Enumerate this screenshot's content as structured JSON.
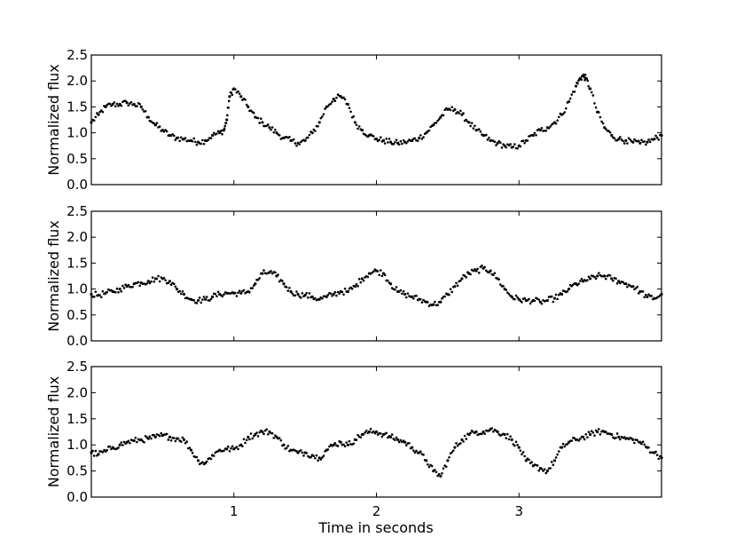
{
  "figure": {
    "xlabel": "Time in seconds"
  },
  "chart_data": [
    {
      "type": "scatter",
      "panel": "top",
      "ylabel": "Normalized flux",
      "xlim": [
        0,
        4
      ],
      "ylim": [
        0,
        2.5
      ],
      "yticks": [
        0,
        0.5,
        1,
        1.5,
        2,
        2.5
      ],
      "ytick_labels": [
        "0.0",
        "0.5",
        "1.0",
        "1.5",
        "2.0",
        "2.5"
      ],
      "xticks": [
        1,
        2,
        3
      ],
      "xtick_labels": [],
      "marker_color": "#000000",
      "series": [
        {
          "x": [
            0.0,
            0.05,
            0.1,
            0.15,
            0.2,
            0.25,
            0.3,
            0.35,
            0.4,
            0.45,
            0.5,
            0.55,
            0.6,
            0.65,
            0.7,
            0.75,
            0.8,
            0.85,
            0.9,
            0.93,
            0.95,
            0.97,
            1.0,
            1.05,
            1.1,
            1.15,
            1.2,
            1.25,
            1.3,
            1.35,
            1.4,
            1.45,
            1.5,
            1.55,
            1.6,
            1.65,
            1.7,
            1.75,
            1.8,
            1.85,
            1.9,
            1.95,
            2.0,
            2.05,
            2.1,
            2.15,
            2.2,
            2.25,
            2.3,
            2.35,
            2.4,
            2.45,
            2.5,
            2.55,
            2.6,
            2.65,
            2.7,
            2.75,
            2.8,
            2.85,
            2.9,
            2.95,
            3.0,
            3.05,
            3.1,
            3.15,
            3.2,
            3.25,
            3.3,
            3.35,
            3.4,
            3.43,
            3.45,
            3.47,
            3.5,
            3.55,
            3.6,
            3.65,
            3.7,
            3.75,
            3.8,
            3.85,
            3.9,
            3.95,
            4.0
          ],
          "y": [
            1.2,
            1.35,
            1.5,
            1.55,
            1.55,
            1.58,
            1.55,
            1.5,
            1.3,
            1.15,
            1.05,
            0.95,
            0.9,
            0.88,
            0.85,
            0.82,
            0.85,
            0.95,
            1.0,
            1.05,
            1.25,
            1.7,
            1.85,
            1.7,
            1.5,
            1.3,
            1.2,
            1.1,
            1.0,
            0.9,
            0.85,
            0.8,
            0.85,
            1.0,
            1.2,
            1.5,
            1.65,
            1.7,
            1.55,
            1.2,
            1.05,
            0.95,
            0.88,
            0.85,
            0.82,
            0.8,
            0.82,
            0.85,
            0.9,
            1.0,
            1.15,
            1.3,
            1.45,
            1.45,
            1.35,
            1.2,
            1.05,
            0.95,
            0.85,
            0.8,
            0.75,
            0.72,
            0.75,
            0.85,
            0.95,
            1.05,
            1.1,
            1.2,
            1.35,
            1.6,
            1.9,
            2.05,
            2.1,
            2.05,
            1.85,
            1.4,
            1.1,
            0.95,
            0.88,
            0.85,
            0.82,
            0.8,
            0.82,
            0.88,
            0.95
          ]
        }
      ]
    },
    {
      "type": "scatter",
      "panel": "middle",
      "ylabel": "Normalized flux",
      "xlim": [
        0,
        4
      ],
      "ylim": [
        0,
        2.5
      ],
      "yticks": [
        0,
        0.5,
        1,
        1.5,
        2,
        2.5
      ],
      "ytick_labels": [
        "0.0",
        "0.5",
        "1.0",
        "1.5",
        "2.0",
        "2.5"
      ],
      "xticks": [
        1,
        2,
        3
      ],
      "xtick_labels": [],
      "marker_color": "#000000",
      "series": [
        {
          "x": [
            0.0,
            0.05,
            0.1,
            0.15,
            0.2,
            0.25,
            0.3,
            0.35,
            0.4,
            0.45,
            0.5,
            0.55,
            0.6,
            0.65,
            0.7,
            0.75,
            0.8,
            0.85,
            0.9,
            0.95,
            1.0,
            1.05,
            1.1,
            1.15,
            1.2,
            1.25,
            1.3,
            1.35,
            1.4,
            1.45,
            1.5,
            1.55,
            1.6,
            1.65,
            1.7,
            1.75,
            1.8,
            1.85,
            1.9,
            1.95,
            2.0,
            2.05,
            2.1,
            2.15,
            2.2,
            2.25,
            2.3,
            2.35,
            2.4,
            2.45,
            2.5,
            2.55,
            2.6,
            2.65,
            2.7,
            2.75,
            2.8,
            2.85,
            2.9,
            2.95,
            3.0,
            3.05,
            3.1,
            3.15,
            3.2,
            3.25,
            3.3,
            3.35,
            3.4,
            3.45,
            3.5,
            3.55,
            3.6,
            3.65,
            3.7,
            3.75,
            3.8,
            3.85,
            3.9,
            3.95,
            4.0
          ],
          "y": [
            0.9,
            0.88,
            0.92,
            0.95,
            1.0,
            1.05,
            1.1,
            1.12,
            1.15,
            1.2,
            1.2,
            1.15,
            1.0,
            0.9,
            0.8,
            0.78,
            0.8,
            0.85,
            0.9,
            0.92,
            0.92,
            0.92,
            0.95,
            1.1,
            1.3,
            1.32,
            1.25,
            1.1,
            0.95,
            0.9,
            0.88,
            0.85,
            0.8,
            0.85,
            0.9,
            0.95,
            0.95,
            1.05,
            1.2,
            1.3,
            1.35,
            1.3,
            1.1,
            0.95,
            0.9,
            0.85,
            0.8,
            0.75,
            0.7,
            0.75,
            0.9,
            1.05,
            1.2,
            1.3,
            1.35,
            1.4,
            1.35,
            1.2,
            1.0,
            0.85,
            0.8,
            0.78,
            0.78,
            0.75,
            0.78,
            0.82,
            0.9,
            1.0,
            1.1,
            1.15,
            1.2,
            1.25,
            1.25,
            1.2,
            1.15,
            1.1,
            1.05,
            0.95,
            0.85,
            0.82,
            0.9
          ]
        }
      ]
    },
    {
      "type": "scatter",
      "panel": "bottom",
      "ylabel": "Normalized flux",
      "xlim": [
        0,
        4
      ],
      "ylim": [
        0,
        2.5
      ],
      "yticks": [
        0,
        0.5,
        1,
        1.5,
        2,
        2.5
      ],
      "ytick_labels": [
        "0.0",
        "0.5",
        "1.0",
        "1.5",
        "2.0",
        "2.5"
      ],
      "xticks": [
        1,
        2,
        3
      ],
      "xtick_labels": [
        "1",
        "2",
        "3"
      ],
      "marker_color": "#000000",
      "series": [
        {
          "x": [
            0.0,
            0.05,
            0.1,
            0.15,
            0.2,
            0.25,
            0.3,
            0.35,
            0.4,
            0.45,
            0.5,
            0.55,
            0.6,
            0.65,
            0.7,
            0.75,
            0.8,
            0.85,
            0.9,
            0.95,
            1.0,
            1.05,
            1.1,
            1.15,
            1.2,
            1.25,
            1.3,
            1.35,
            1.4,
            1.45,
            1.5,
            1.55,
            1.6,
            1.65,
            1.7,
            1.75,
            1.8,
            1.85,
            1.9,
            1.95,
            2.0,
            2.05,
            2.1,
            2.15,
            2.2,
            2.25,
            2.3,
            2.35,
            2.4,
            2.45,
            2.5,
            2.55,
            2.6,
            2.65,
            2.7,
            2.75,
            2.8,
            2.85,
            2.9,
            2.95,
            3.0,
            3.05,
            3.1,
            3.15,
            3.2,
            3.25,
            3.3,
            3.35,
            3.4,
            3.45,
            3.5,
            3.55,
            3.6,
            3.65,
            3.7,
            3.75,
            3.8,
            3.85,
            3.9,
            3.95,
            4.0
          ],
          "y": [
            0.85,
            0.82,
            0.88,
            0.95,
            1.0,
            1.05,
            1.08,
            1.1,
            1.12,
            1.15,
            1.18,
            1.15,
            1.12,
            1.1,
            0.9,
            0.7,
            0.65,
            0.8,
            0.9,
            0.92,
            0.92,
            1.0,
            1.15,
            1.2,
            1.25,
            1.25,
            1.15,
            1.0,
            0.9,
            0.85,
            0.85,
            0.8,
            0.75,
            0.9,
            1.0,
            1.05,
            1.0,
            1.1,
            1.2,
            1.25,
            1.25,
            1.2,
            1.15,
            1.1,
            1.05,
            0.95,
            0.85,
            0.7,
            0.5,
            0.4,
            0.7,
            0.95,
            1.1,
            1.2,
            1.25,
            1.25,
            1.3,
            1.25,
            1.2,
            1.1,
            0.95,
            0.7,
            0.6,
            0.55,
            0.5,
            0.7,
            0.95,
            1.05,
            1.1,
            1.15,
            1.2,
            1.25,
            1.25,
            1.2,
            1.15,
            1.12,
            1.1,
            1.05,
            0.95,
            0.85,
            0.75
          ]
        }
      ]
    }
  ]
}
